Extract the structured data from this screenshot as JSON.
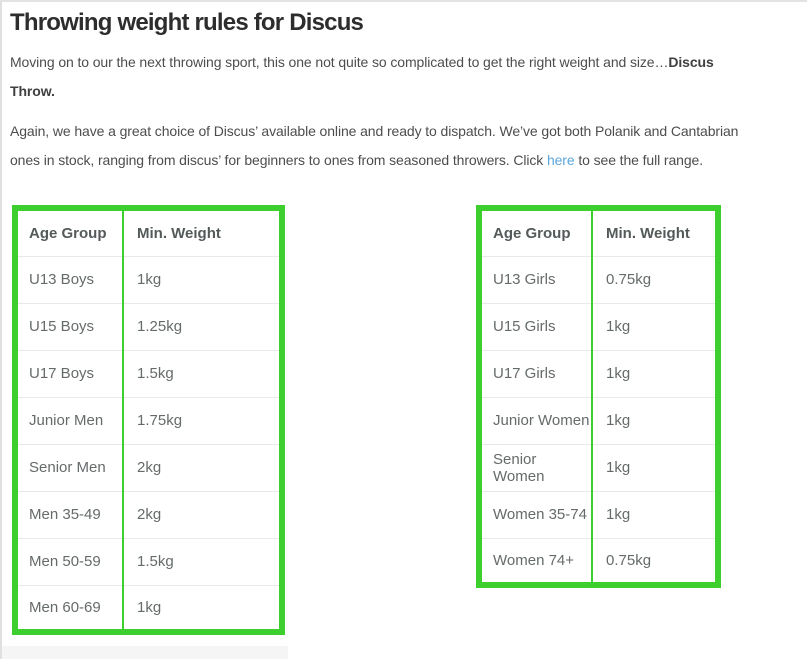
{
  "page": {
    "title": "Throwing weight rules for Discus"
  },
  "paragraph1": {
    "line1_normal": "Moving on to our the next throwing sport, this one not quite so complicated to get the right weight and size…",
    "line1_bold": "Discus",
    "line2_bold": "Throw."
  },
  "paragraph2": {
    "line1": "Again, we have a great choice of Discus’ available online and ready to dispatch. We’ve got both Polanik and Cantabrian",
    "line2_before_link": "ones in stock, ranging from discus’ for beginners to ones from seasoned throwers. Click ",
    "link_text": "here",
    "line2_after_link": " to see the full range."
  },
  "colors": {
    "table_border_green": "#3ccf2e",
    "link_blue": "#5ba6db",
    "row_divider": "#e9e9e9"
  },
  "tables": [
    {
      "name": "discus-weights-male",
      "columns": [
        "Age Group",
        "Min. Weight"
      ],
      "rows": [
        [
          "U13 Boys",
          "1kg"
        ],
        [
          "U15 Boys",
          "1.25kg"
        ],
        [
          "U17 Boys",
          "1.5kg"
        ],
        [
          "Junior Men",
          "1.75kg"
        ],
        [
          "Senior Men",
          "2kg"
        ],
        [
          "Men 35-49",
          "2kg"
        ],
        [
          "Men 50-59",
          "1.5kg"
        ],
        [
          "Men 60-69",
          "1kg"
        ]
      ]
    },
    {
      "name": "discus-weights-female",
      "columns": [
        "Age Group",
        "Min. Weight"
      ],
      "rows": [
        [
          "U13 Girls",
          "0.75kg"
        ],
        [
          "U15 Girls",
          "1kg"
        ],
        [
          "U17 Girls",
          "1kg"
        ],
        [
          "Junior Women",
          "1kg"
        ],
        [
          "Senior Women",
          "1kg"
        ],
        [
          "Women 35-74",
          "1kg"
        ],
        [
          "Women 74+",
          "0.75kg"
        ]
      ]
    }
  ]
}
